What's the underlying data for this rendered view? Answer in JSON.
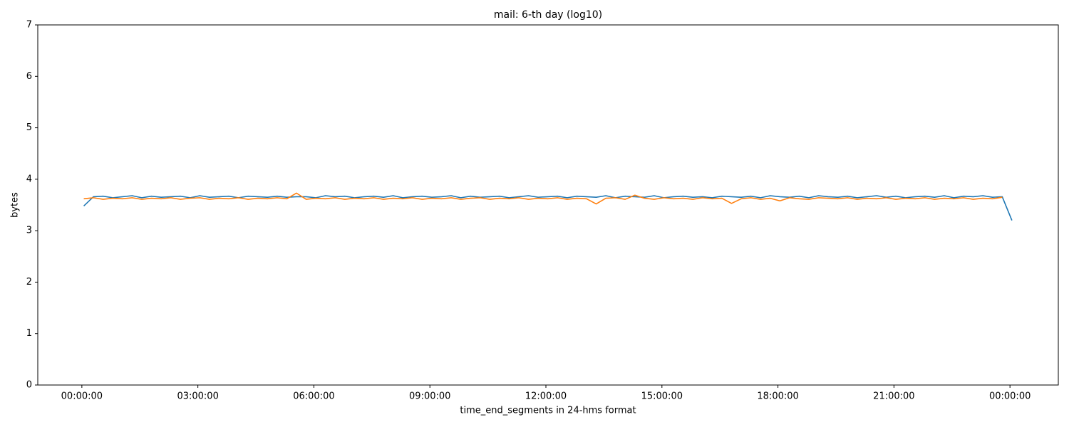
{
  "chart_data": {
    "type": "line",
    "title": "mail: 6-th day (log10)",
    "xlabel": "time_end_segments in 24-hms format",
    "ylabel": "bytes",
    "x": [
      0.05,
      0.3,
      0.55,
      0.8,
      1.05,
      1.3,
      1.55,
      1.8,
      2.05,
      2.3,
      2.55,
      2.8,
      3.05,
      3.3,
      3.55,
      3.8,
      4.05,
      4.3,
      4.55,
      4.8,
      5.05,
      5.3,
      5.55,
      5.8,
      6.05,
      6.3,
      6.55,
      6.8,
      7.05,
      7.3,
      7.55,
      7.8,
      8.05,
      8.3,
      8.55,
      8.8,
      9.05,
      9.3,
      9.55,
      9.8,
      10.05,
      10.3,
      10.55,
      10.8,
      11.05,
      11.3,
      11.55,
      11.8,
      12.05,
      12.3,
      12.55,
      12.8,
      13.05,
      13.3,
      13.55,
      13.8,
      14.05,
      14.3,
      14.55,
      14.8,
      15.05,
      15.3,
      15.55,
      15.8,
      16.05,
      16.3,
      16.55,
      16.8,
      17.05,
      17.3,
      17.55,
      17.8,
      18.05,
      18.3,
      18.55,
      18.8,
      19.05,
      19.3,
      19.55,
      19.8,
      20.05,
      20.3,
      20.55,
      20.8,
      21.05,
      21.3,
      21.55,
      21.8,
      22.05,
      22.3,
      22.55,
      22.8,
      23.05,
      23.3,
      23.55,
      23.8,
      24.05
    ],
    "series": [
      {
        "color": "#1f77b4",
        "values": [
          3.48,
          3.66,
          3.67,
          3.64,
          3.66,
          3.68,
          3.64,
          3.67,
          3.65,
          3.66,
          3.67,
          3.64,
          3.68,
          3.65,
          3.66,
          3.67,
          3.64,
          3.67,
          3.66,
          3.65,
          3.67,
          3.65,
          3.66,
          3.66,
          3.64,
          3.68,
          3.66,
          3.67,
          3.64,
          3.66,
          3.67,
          3.65,
          3.68,
          3.64,
          3.66,
          3.67,
          3.65,
          3.66,
          3.68,
          3.64,
          3.67,
          3.65,
          3.66,
          3.67,
          3.64,
          3.66,
          3.68,
          3.65,
          3.66,
          3.67,
          3.64,
          3.67,
          3.66,
          3.65,
          3.68,
          3.64,
          3.67,
          3.66,
          3.65,
          3.68,
          3.64,
          3.66,
          3.67,
          3.65,
          3.66,
          3.64,
          3.67,
          3.66,
          3.65,
          3.67,
          3.64,
          3.68,
          3.66,
          3.65,
          3.67,
          3.64,
          3.68,
          3.66,
          3.65,
          3.67,
          3.64,
          3.66,
          3.68,
          3.65,
          3.67,
          3.64,
          3.66,
          3.67,
          3.65,
          3.68,
          3.64,
          3.67,
          3.66,
          3.68,
          3.65,
          3.66,
          3.2
        ]
      },
      {
        "color": "#ff7f0e",
        "values": [
          3.62,
          3.64,
          3.61,
          3.63,
          3.62,
          3.64,
          3.61,
          3.63,
          3.62,
          3.64,
          3.61,
          3.63,
          3.64,
          3.61,
          3.63,
          3.62,
          3.64,
          3.61,
          3.63,
          3.62,
          3.64,
          3.62,
          3.73,
          3.61,
          3.63,
          3.62,
          3.64,
          3.61,
          3.63,
          3.62,
          3.64,
          3.61,
          3.63,
          3.62,
          3.64,
          3.61,
          3.63,
          3.62,
          3.64,
          3.61,
          3.63,
          3.64,
          3.61,
          3.63,
          3.62,
          3.64,
          3.61,
          3.63,
          3.62,
          3.64,
          3.61,
          3.63,
          3.62,
          3.52,
          3.63,
          3.64,
          3.61,
          3.69,
          3.63,
          3.61,
          3.64,
          3.62,
          3.63,
          3.61,
          3.64,
          3.62,
          3.63,
          3.53,
          3.62,
          3.64,
          3.61,
          3.63,
          3.58,
          3.64,
          3.62,
          3.61,
          3.64,
          3.63,
          3.62,
          3.64,
          3.61,
          3.63,
          3.62,
          3.64,
          3.61,
          3.63,
          3.62,
          3.64,
          3.61,
          3.63,
          3.62,
          3.64,
          3.61,
          3.63,
          3.62,
          3.65,
          null
        ]
      }
    ],
    "xlim": [
      -1.14,
      25.25
    ],
    "xticks": [
      {
        "value": 0,
        "label": "00:00:00"
      },
      {
        "value": 3,
        "label": "03:00:00"
      },
      {
        "value": 6,
        "label": "06:00:00"
      },
      {
        "value": 9,
        "label": "09:00:00"
      },
      {
        "value": 12,
        "label": "12:00:00"
      },
      {
        "value": 15,
        "label": "15:00:00"
      },
      {
        "value": 18,
        "label": "18:00:00"
      },
      {
        "value": 21,
        "label": "21:00:00"
      },
      {
        "value": 24,
        "label": "00:00:00"
      }
    ],
    "ylim": [
      0,
      7
    ],
    "yticks": [
      0,
      1,
      2,
      3,
      4,
      5,
      6,
      7
    ],
    "grid": false
  }
}
